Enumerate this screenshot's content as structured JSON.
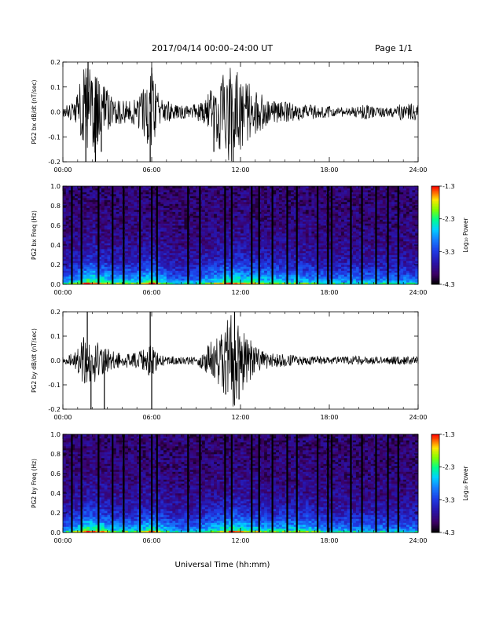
{
  "header": {
    "title": "2017/04/14   00:00–24:00  UT",
    "page": "Page 1/1"
  },
  "footer": {
    "xlabel": "Universal Time (hh:mm)"
  },
  "colors": {
    "trace": "#000000",
    "colormap": [
      "#000000",
      "#3a0060",
      "#2020c0",
      "#1a6cff",
      "#00d8ff",
      "#00ff80",
      "#a0ff00",
      "#ffe000",
      "#ff6000",
      "#ff0000"
    ]
  },
  "chart_data": [
    {
      "type": "line",
      "ylabel": "PG2 bx dB/dt (nT/sec)",
      "x_ticks": [
        "00:00",
        "06:00",
        "12:00",
        "18:00",
        "24:00"
      ],
      "xlim_hours": [
        0,
        24
      ],
      "ylim": [
        -0.2,
        0.2
      ],
      "y_ticks": [
        "-0.2",
        "-0.1",
        "0.0",
        "0.1",
        "0.2"
      ],
      "grid": false,
      "envelope": [
        {
          "t": 0,
          "a": 0.02
        },
        {
          "t": 0.5,
          "a": 0.035
        },
        {
          "t": 1.0,
          "a": 0.08
        },
        {
          "t": 1.5,
          "a": 0.2
        },
        {
          "t": 2.0,
          "a": 0.2
        },
        {
          "t": 2.5,
          "a": 0.12
        },
        {
          "t": 3.0,
          "a": 0.09
        },
        {
          "t": 3.5,
          "a": 0.06
        },
        {
          "t": 4.0,
          "a": 0.045
        },
        {
          "t": 4.5,
          "a": 0.05
        },
        {
          "t": 5.0,
          "a": 0.06
        },
        {
          "t": 5.6,
          "a": 0.11
        },
        {
          "t": 6.0,
          "a": 0.18
        },
        {
          "t": 6.5,
          "a": 0.06
        },
        {
          "t": 7.0,
          "a": 0.045
        },
        {
          "t": 7.5,
          "a": 0.03
        },
        {
          "t": 8.0,
          "a": 0.03
        },
        {
          "t": 8.5,
          "a": 0.025
        },
        {
          "t": 9.0,
          "a": 0.035
        },
        {
          "t": 9.5,
          "a": 0.05
        },
        {
          "t": 10.0,
          "a": 0.09
        },
        {
          "t": 10.5,
          "a": 0.14
        },
        {
          "t": 11.0,
          "a": 0.2
        },
        {
          "t": 11.5,
          "a": 0.2
        },
        {
          "t": 12.0,
          "a": 0.16
        },
        {
          "t": 12.5,
          "a": 0.12
        },
        {
          "t": 13.0,
          "a": 0.09
        },
        {
          "t": 13.5,
          "a": 0.07
        },
        {
          "t": 14.0,
          "a": 0.05
        },
        {
          "t": 14.5,
          "a": 0.045
        },
        {
          "t": 15.0,
          "a": 0.04
        },
        {
          "t": 15.5,
          "a": 0.04
        },
        {
          "t": 16.0,
          "a": 0.035
        },
        {
          "t": 16.5,
          "a": 0.03
        },
        {
          "t": 17.0,
          "a": 0.03
        },
        {
          "t": 17.5,
          "a": 0.025
        },
        {
          "t": 18.0,
          "a": 0.025
        },
        {
          "t": 18.5,
          "a": 0.02
        },
        {
          "t": 19.0,
          "a": 0.02
        },
        {
          "t": 19.5,
          "a": 0.02
        },
        {
          "t": 20.0,
          "a": 0.025
        },
        {
          "t": 20.5,
          "a": 0.03
        },
        {
          "t": 21.0,
          "a": 0.025
        },
        {
          "t": 21.5,
          "a": 0.02
        },
        {
          "t": 22.0,
          "a": 0.02
        },
        {
          "t": 22.5,
          "a": 0.03
        },
        {
          "t": 23.0,
          "a": 0.035
        },
        {
          "t": 23.5,
          "a": 0.04
        },
        {
          "t": 24.0,
          "a": 0.03
        }
      ],
      "spikes": [
        {
          "t": 1.55,
          "v": -0.2
        },
        {
          "t": 1.7,
          "v": 0.2
        },
        {
          "t": 2.2,
          "v": -0.2
        },
        {
          "t": 2.6,
          "v": -0.16
        },
        {
          "t": 5.9,
          "v": -0.2
        },
        {
          "t": 6.0,
          "v": 0.18
        },
        {
          "t": 10.2,
          "v": -0.16
        },
        {
          "t": 11.5,
          "v": -0.2
        }
      ]
    },
    {
      "type": "heatmap",
      "ylabel": "PG2 bx Freq (Hz)",
      "colorbar_label": "Log₁₀ Power",
      "colorbar_ticks": [
        "-1.3",
        "-2.3",
        "-3.3",
        "-4.3"
      ],
      "colorbar_range": [
        -4.3,
        -1.3
      ],
      "x_ticks": [
        "00:00",
        "06:00",
        "12:00",
        "18:00",
        "24:00"
      ],
      "xlim_hours": [
        0,
        24
      ],
      "ylim": [
        0,
        1.0
      ],
      "y_ticks": [
        "0.0",
        "0.2",
        "0.4",
        "0.6",
        "0.8",
        "1.0"
      ],
      "gap_hours": [
        0.55,
        1.2,
        2.35,
        3.3,
        4.05,
        5.15,
        5.95,
        6.3,
        8.4,
        9.2,
        10.9,
        11.35,
        12.7,
        13.2,
        14.1,
        15.1,
        15.75,
        17.15,
        17.85,
        18.1,
        19.4,
        20.15,
        21.1,
        21.9,
        22.6
      ],
      "activity": [
        {
          "t": 0,
          "p": 0.3
        },
        {
          "t": 1.0,
          "p": 0.55
        },
        {
          "t": 1.8,
          "p": 0.85
        },
        {
          "t": 2.5,
          "p": 0.7
        },
        {
          "t": 3.5,
          "p": 0.55
        },
        {
          "t": 5.0,
          "p": 0.5
        },
        {
          "t": 6.0,
          "p": 0.75
        },
        {
          "t": 7.5,
          "p": 0.3
        },
        {
          "t": 9.0,
          "p": 0.35
        },
        {
          "t": 10.5,
          "p": 0.6
        },
        {
          "t": 11.5,
          "p": 0.8
        },
        {
          "t": 12.5,
          "p": 0.65
        },
        {
          "t": 14.0,
          "p": 0.55
        },
        {
          "t": 16.0,
          "p": 0.5
        },
        {
          "t": 18.0,
          "p": 0.35
        },
        {
          "t": 20.0,
          "p": 0.4
        },
        {
          "t": 22.0,
          "p": 0.35
        },
        {
          "t": 24.0,
          "p": 0.3
        }
      ]
    },
    {
      "type": "line",
      "ylabel": "PG2 by dB/dt (nT/sec)",
      "x_ticks": [
        "00:00",
        "06:00",
        "12:00",
        "18:00",
        "24:00"
      ],
      "xlim_hours": [
        0,
        24
      ],
      "ylim": [
        -0.2,
        0.2
      ],
      "y_ticks": [
        "-0.2",
        "-0.1",
        "0.0",
        "0.1",
        "0.2"
      ],
      "grid": false,
      "envelope": [
        {
          "t": 0,
          "a": 0.015
        },
        {
          "t": 0.5,
          "a": 0.025
        },
        {
          "t": 1.0,
          "a": 0.05
        },
        {
          "t": 1.5,
          "a": 0.12
        },
        {
          "t": 2.0,
          "a": 0.1
        },
        {
          "t": 2.5,
          "a": 0.07
        },
        {
          "t": 3.0,
          "a": 0.05
        },
        {
          "t": 3.5,
          "a": 0.035
        },
        {
          "t": 4.0,
          "a": 0.03
        },
        {
          "t": 4.5,
          "a": 0.03
        },
        {
          "t": 5.0,
          "a": 0.035
        },
        {
          "t": 5.6,
          "a": 0.05
        },
        {
          "t": 6.0,
          "a": 0.07
        },
        {
          "t": 6.5,
          "a": 0.025
        },
        {
          "t": 7.0,
          "a": 0.02
        },
        {
          "t": 8.0,
          "a": 0.015
        },
        {
          "t": 9.0,
          "a": 0.02
        },
        {
          "t": 9.5,
          "a": 0.04
        },
        {
          "t": 10.0,
          "a": 0.08
        },
        {
          "t": 10.5,
          "a": 0.11
        },
        {
          "t": 11.0,
          "a": 0.17
        },
        {
          "t": 11.5,
          "a": 0.2
        },
        {
          "t": 12.0,
          "a": 0.14
        },
        {
          "t": 12.5,
          "a": 0.1
        },
        {
          "t": 13.0,
          "a": 0.06
        },
        {
          "t": 13.5,
          "a": 0.04
        },
        {
          "t": 14.0,
          "a": 0.03
        },
        {
          "t": 15.0,
          "a": 0.025
        },
        {
          "t": 16.0,
          "a": 0.02
        },
        {
          "t": 17.0,
          "a": 0.02
        },
        {
          "t": 18.0,
          "a": 0.015
        },
        {
          "t": 19.0,
          "a": 0.015
        },
        {
          "t": 20.0,
          "a": 0.02
        },
        {
          "t": 21.0,
          "a": 0.015
        },
        {
          "t": 22.0,
          "a": 0.015
        },
        {
          "t": 23.0,
          "a": 0.02
        },
        {
          "t": 24.0,
          "a": 0.015
        }
      ],
      "spikes": [
        {
          "t": 1.65,
          "v": 0.2
        },
        {
          "t": 1.9,
          "v": -0.2
        },
        {
          "t": 2.8,
          "v": -0.2
        },
        {
          "t": 5.9,
          "v": 0.2
        },
        {
          "t": 6.0,
          "v": -0.2
        },
        {
          "t": 11.0,
          "v": -0.14
        },
        {
          "t": 11.6,
          "v": 0.2
        },
        {
          "t": 11.9,
          "v": -0.16
        }
      ]
    },
    {
      "type": "heatmap",
      "ylabel": "PG2 by Freq (Hz)",
      "colorbar_label": "Log₁₀ Power",
      "colorbar_ticks": [
        "-1.3",
        "-2.3",
        "-3.3",
        "-4.3"
      ],
      "colorbar_range": [
        -4.3,
        -1.3
      ],
      "x_ticks": [
        "00:00",
        "06:00",
        "12:00",
        "18:00",
        "24:00"
      ],
      "xlim_hours": [
        0,
        24
      ],
      "ylim": [
        0,
        1.0
      ],
      "y_ticks": [
        "0.0",
        "0.2",
        "0.4",
        "0.6",
        "0.8",
        "1.0"
      ],
      "gap_hours": [
        0.55,
        1.2,
        2.35,
        3.3,
        4.05,
        5.15,
        5.95,
        6.3,
        8.4,
        9.2,
        10.9,
        11.35,
        12.7,
        13.2,
        14.1,
        15.1,
        15.75,
        17.15,
        17.85,
        18.1,
        19.4,
        20.15,
        21.1,
        21.9,
        22.6
      ],
      "activity": [
        {
          "t": 0,
          "p": 0.3
        },
        {
          "t": 1.0,
          "p": 0.55
        },
        {
          "t": 1.8,
          "p": 0.8
        },
        {
          "t": 2.5,
          "p": 0.7
        },
        {
          "t": 3.5,
          "p": 0.5
        },
        {
          "t": 5.0,
          "p": 0.45
        },
        {
          "t": 6.0,
          "p": 0.7
        },
        {
          "t": 7.5,
          "p": 0.3
        },
        {
          "t": 9.0,
          "p": 0.35
        },
        {
          "t": 10.5,
          "p": 0.55
        },
        {
          "t": 11.5,
          "p": 0.75
        },
        {
          "t": 12.5,
          "p": 0.6
        },
        {
          "t": 14.0,
          "p": 0.5
        },
        {
          "t": 16.0,
          "p": 0.55
        },
        {
          "t": 18.0,
          "p": 0.35
        },
        {
          "t": 20.0,
          "p": 0.35
        },
        {
          "t": 22.0,
          "p": 0.3
        },
        {
          "t": 24.0,
          "p": 0.3
        }
      ]
    }
  ]
}
